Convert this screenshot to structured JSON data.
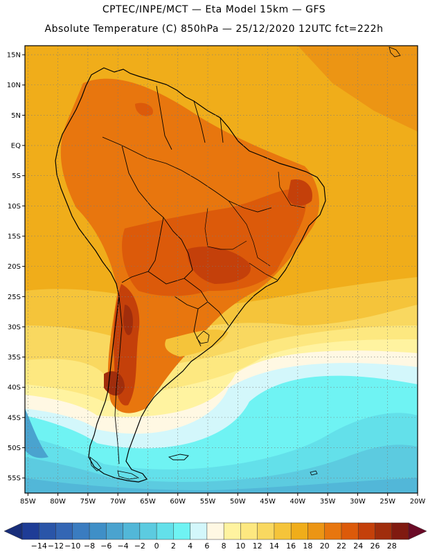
{
  "header": {
    "line1": "CPTEC/INPE/MCT —  Eta Model 15km — GFS",
    "line2": "Absolute Temperature (C) 850hPa — 25/12/2020 12UTC fct=222h"
  },
  "map": {
    "lat_labels": [
      "15N",
      "10N",
      "5N",
      "EQ",
      "5S",
      "10S",
      "15S",
      "20S",
      "25S",
      "30S",
      "35S",
      "40S",
      "45S",
      "50S",
      "55S"
    ],
    "lon_labels": [
      "85W",
      "80W",
      "75W",
      "70W",
      "65W",
      "60W",
      "55W",
      "50W",
      "45W",
      "40W",
      "35W",
      "30W",
      "25W",
      "20W"
    ],
    "lat_range": [
      -57.5,
      16.5
    ],
    "lon_range": [
      -85.5,
      -20
    ],
    "grid": true
  },
  "colorbar": {
    "labels": [
      "-14",
      "-12",
      "-10",
      "-8",
      "-6",
      "-4",
      "-2",
      "0",
      "2",
      "4",
      "6",
      "8",
      "10",
      "12",
      "14",
      "16",
      "18",
      "20",
      "22",
      "24",
      "26",
      "28"
    ],
    "colors": [
      "#1e3c96",
      "#2a55a8",
      "#3366b4",
      "#3a7cc0",
      "#3f8fc7",
      "#4aa3cf",
      "#52b7d8",
      "#5ccbe0",
      "#63e0ea",
      "#6ff3f3",
      "#d3f7fb",
      "#fff8e3",
      "#fff3a0",
      "#fde880",
      "#f9d860",
      "#f5c43a",
      "#f0ad1a",
      "#ec9514",
      "#e8760e",
      "#dc5a0a",
      "#c4400a",
      "#a02d0c",
      "#801a10"
    ],
    "low_arrow_color": "#182e7a",
    "high_arrow_color": "#6a0a26"
  }
}
